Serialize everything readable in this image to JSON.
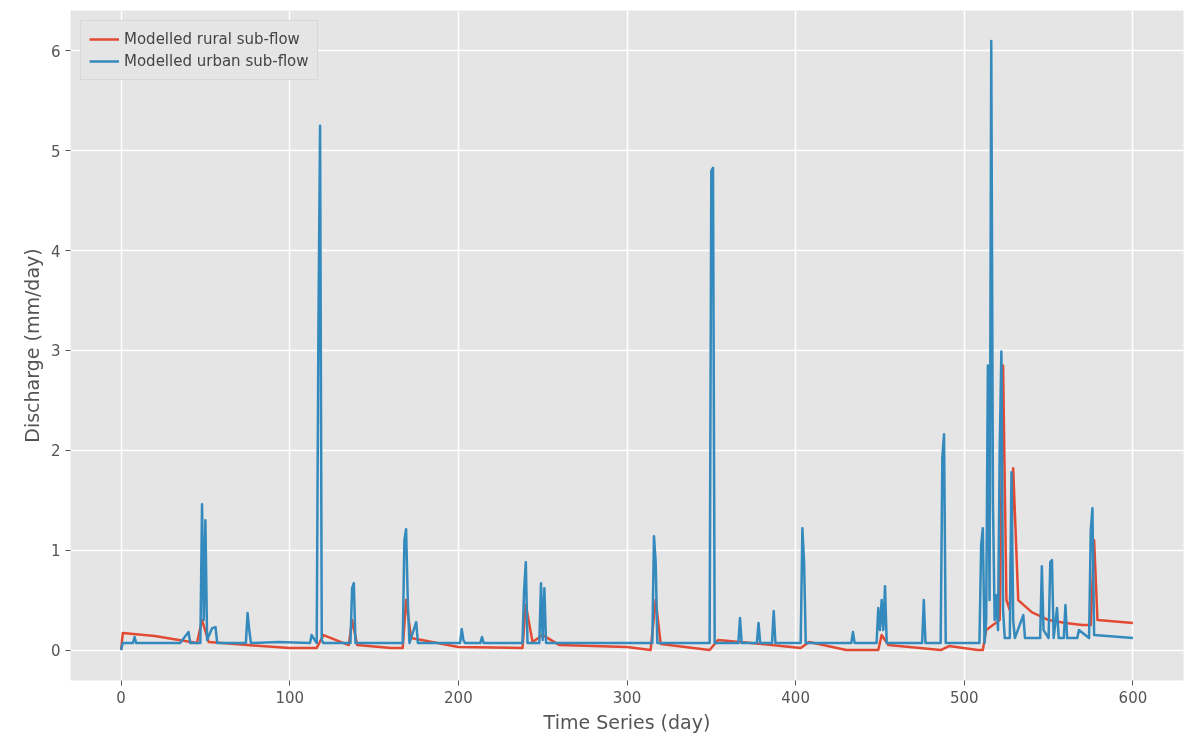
{
  "chart_data": {
    "type": "line",
    "xlabel": "Time Series (day)",
    "ylabel": "Discharge (mm/day)",
    "xlim": [
      -30,
      630
    ],
    "ylim": [
      -0.305,
      6.405
    ],
    "xticks": [
      0,
      100,
      200,
      300,
      400,
      500,
      600
    ],
    "yticks": [
      0,
      1,
      2,
      3,
      4,
      5,
      6
    ],
    "grid": true,
    "legend": "top left",
    "line_style": "solid",
    "series": [
      {
        "name": "Modelled rural sub-flow",
        "color": "#e24a33",
        "x": [
          0,
          1,
          20,
          45,
          48,
          52,
          75,
          100,
          116,
          120,
          135,
          137,
          140,
          160,
          167,
          169,
          172,
          200,
          238,
          240,
          244,
          250,
          260,
          300,
          314,
          317,
          320,
          349,
          354,
          380,
          403,
          408,
          430,
          449,
          451,
          455,
          486,
          491,
          508,
          511,
          513,
          521,
          523,
          525,
          527,
          529,
          532,
          540,
          550,
          560,
          570,
          575,
          577,
          579,
          600
        ],
        "values": [
          0.0,
          0.17,
          0.14,
          0.07,
          0.3,
          0.08,
          0.05,
          0.02,
          0.02,
          0.15,
          0.05,
          0.3,
          0.05,
          0.02,
          0.02,
          0.5,
          0.12,
          0.03,
          0.02,
          0.45,
          0.08,
          0.15,
          0.05,
          0.03,
          0.0,
          0.5,
          0.06,
          0.0,
          0.1,
          0.06,
          0.02,
          0.08,
          0.0,
          0.0,
          0.15,
          0.05,
          0.0,
          0.04,
          0.0,
          0.0,
          0.2,
          0.3,
          2.85,
          0.5,
          0.4,
          1.82,
          0.5,
          0.38,
          0.3,
          0.27,
          0.25,
          0.25,
          1.1,
          0.3,
          0.27
        ]
      },
      {
        "name": "Modelled urban sub-flow",
        "color": "#348abd",
        "x": [
          0,
          1,
          7,
          8,
          9,
          35,
          40,
          41,
          47,
          48,
          49,
          50,
          51,
          54,
          56,
          57,
          74,
          75,
          76,
          77,
          93,
          112,
          113,
          116,
          117,
          118,
          119,
          120,
          136,
          137,
          138,
          139,
          167,
          168,
          169,
          170,
          171,
          175,
          176,
          201,
          202,
          203,
          204,
          213,
          214,
          215,
          238,
          239,
          240,
          241,
          248,
          249,
          250,
          251,
          252,
          315,
          316,
          317,
          318,
          349,
          350,
          351,
          352,
          366,
          367,
          368,
          377,
          378,
          379,
          386,
          387,
          388,
          403,
          404,
          405,
          406,
          433,
          434,
          435,
          448,
          449,
          450,
          451,
          452,
          453,
          454,
          475,
          476,
          477,
          486,
          487,
          488,
          489,
          509,
          510,
          511,
          512,
          513,
          514,
          515,
          516,
          517,
          518,
          519,
          520,
          521,
          522,
          523,
          524,
          527,
          528,
          529,
          530,
          535,
          536,
          545,
          546,
          547,
          550,
          551,
          552,
          553,
          555,
          556,
          559,
          560,
          561,
          567,
          568,
          574,
          575,
          576,
          577,
          600
        ],
        "values": [
          0.0,
          0.07,
          0.07,
          0.13,
          0.07,
          0.07,
          0.18,
          0.07,
          0.07,
          1.46,
          0.3,
          1.3,
          0.1,
          0.22,
          0.23,
          0.07,
          0.07,
          0.37,
          0.2,
          0.07,
          0.08,
          0.07,
          0.15,
          0.07,
          3.2,
          5.25,
          0.1,
          0.07,
          0.07,
          0.62,
          0.67,
          0.07,
          0.07,
          1.1,
          1.21,
          0.5,
          0.07,
          0.28,
          0.07,
          0.07,
          0.21,
          0.1,
          0.07,
          0.07,
          0.13,
          0.07,
          0.07,
          0.6,
          0.88,
          0.07,
          0.07,
          0.67,
          0.1,
          0.62,
          0.07,
          0.07,
          1.14,
          0.88,
          0.07,
          0.07,
          4.8,
          4.83,
          0.07,
          0.07,
          0.32,
          0.07,
          0.07,
          0.27,
          0.07,
          0.07,
          0.39,
          0.07,
          0.07,
          1.22,
          0.88,
          0.07,
          0.07,
          0.18,
          0.07,
          0.07,
          0.42,
          0.2,
          0.5,
          0.2,
          0.64,
          0.07,
          0.07,
          0.5,
          0.07,
          0.07,
          1.93,
          2.16,
          0.07,
          0.07,
          1.05,
          1.22,
          0.07,
          0.3,
          2.85,
          0.5,
          6.1,
          1.5,
          0.3,
          0.55,
          0.2,
          2.0,
          2.99,
          0.4,
          0.12,
          0.12,
          1.78,
          0.3,
          0.12,
          0.35,
          0.12,
          0.12,
          0.84,
          0.2,
          0.12,
          0.88,
          0.9,
          0.12,
          0.42,
          0.12,
          0.12,
          0.45,
          0.12,
          0.12,
          0.2,
          0.12,
          1.2,
          1.42,
          0.15,
          0.12
        ]
      }
    ]
  }
}
